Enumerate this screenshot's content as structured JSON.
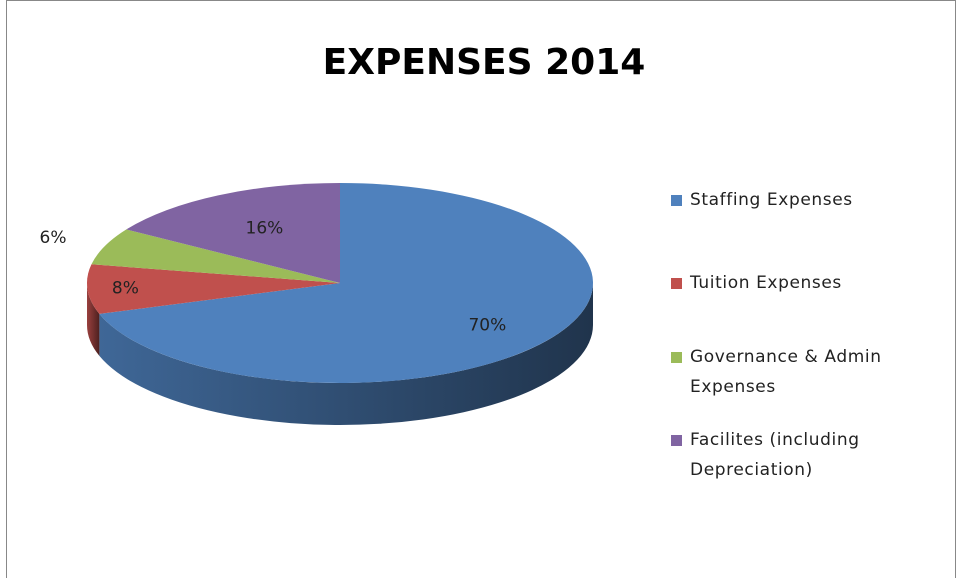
{
  "chart_data": {
    "type": "pie",
    "title": "EXPENSES 2014",
    "categories": [
      "Staffing Expenses",
      "Tuition Expenses",
      "Governance & Admin Expenses",
      "Facilites (including Depreciation)"
    ],
    "values": [
      70,
      8,
      6,
      16
    ],
    "value_labels": [
      "70%",
      "8%",
      "6%",
      "16%"
    ],
    "colors": [
      "#4f81bd",
      "#c0504d",
      "#9bbb59",
      "#8064a2"
    ],
    "legend": "right"
  }
}
